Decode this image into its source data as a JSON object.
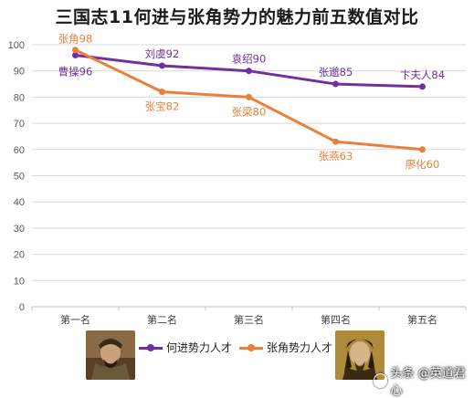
{
  "chart_data": {
    "type": "line",
    "title": "三国志11何进与张角势力的魅力前五数值对比",
    "categories": [
      "第一名",
      "第二名",
      "第三名",
      "第四名",
      "第五名"
    ],
    "ylim": [
      0,
      100
    ],
    "yticks": [
      0,
      10,
      20,
      30,
      40,
      50,
      60,
      70,
      80,
      90,
      100
    ],
    "grid": true,
    "legend": "bottom",
    "series": [
      {
        "name": "何进势力人才",
        "color": "#7030a0",
        "values": [
          96,
          92,
          90,
          85,
          84
        ],
        "labels": [
          "曹操96",
          "刘虞92",
          "袁绍90",
          "张邈85",
          "卞夫人84"
        ]
      },
      {
        "name": "张角势力人才",
        "color": "#e8803a",
        "values": [
          98,
          82,
          80,
          63,
          60
        ],
        "labels": [
          "张角98",
          "张宝82",
          "张梁80",
          "张燕63",
          "廖化60"
        ]
      }
    ]
  },
  "watermark": "头条 @英道君心"
}
